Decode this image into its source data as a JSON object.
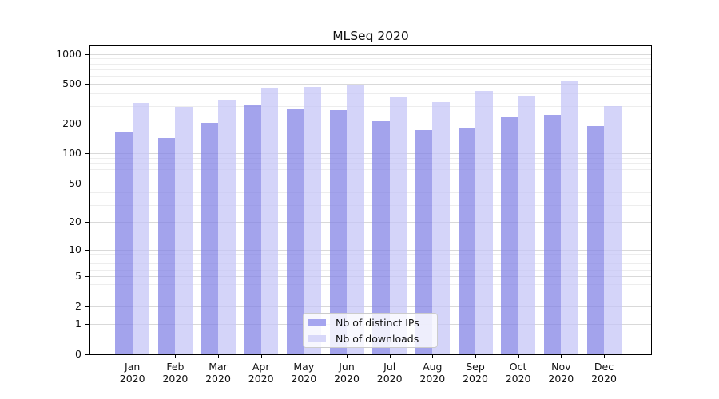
{
  "title": "MLSeq 2020",
  "chart_data": {
    "type": "bar",
    "title": "MLSeq 2020",
    "categories": [
      "Jan",
      "Feb",
      "Mar",
      "Apr",
      "May",
      "Jun",
      "Jul",
      "Aug",
      "Sep",
      "Oct",
      "Nov",
      "Dec"
    ],
    "category_year": "2020",
    "series": [
      {
        "name": "Nb of distinct IPs",
        "color": "#a5a5ef",
        "fill": "rgba(128,128,228,0.72)",
        "values": [
          164,
          142,
          202,
          304,
          282,
          273,
          212,
          171,
          179,
          236,
          243,
          189
        ]
      },
      {
        "name": "Nb of downloads",
        "color": "#d8d8f9",
        "fill": "rgba(196,196,246,0.72)",
        "values": [
          321,
          293,
          347,
          458,
          464,
          495,
          369,
          330,
          428,
          379,
          531,
          301
        ]
      }
    ],
    "yscale": "log1p",
    "y_ticks": [
      0,
      1,
      2,
      5,
      10,
      20,
      50,
      100,
      200,
      500,
      1000
    ],
    "ylim": [
      0,
      1180
    ],
    "grid": true,
    "legend_position": "lower center",
    "grid_major_color": "#d9d9d9",
    "grid_minor_color": "#ededed"
  }
}
